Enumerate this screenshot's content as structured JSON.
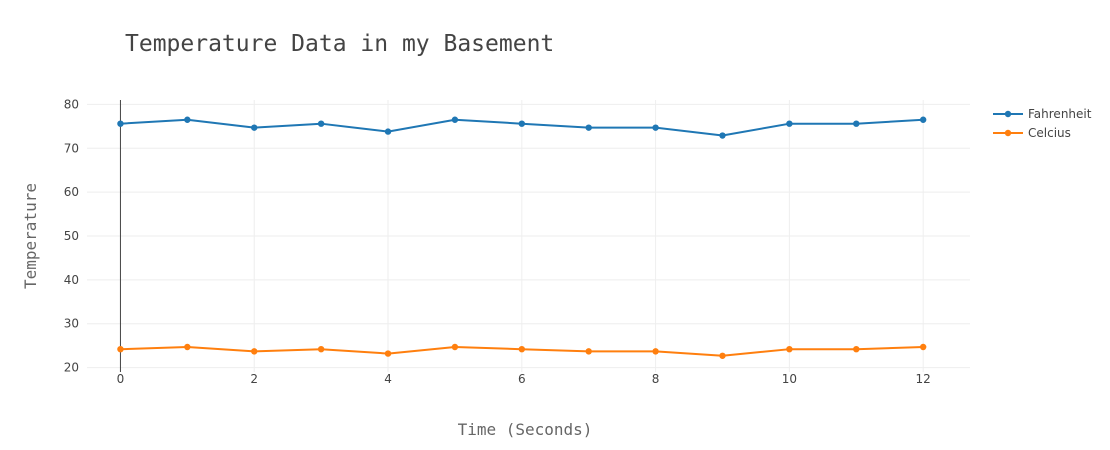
{
  "chart_data": {
    "type": "line",
    "title": "Temperature Data in my Basement",
    "xlabel": "Time (Seconds)",
    "ylabel": "Temperature",
    "xlim": [
      -0.5,
      12.7
    ],
    "ylim": [
      19,
      81
    ],
    "x_ticks": [
      0,
      2,
      4,
      6,
      8,
      10,
      12
    ],
    "y_ticks": [
      20,
      30,
      40,
      50,
      60,
      70,
      80
    ],
    "grid": true,
    "legend_position": "top-right",
    "x": [
      0,
      1,
      2,
      3,
      4,
      5,
      6,
      7,
      8,
      9,
      10,
      11,
      12
    ],
    "series": [
      {
        "name": "Fahrenheit",
        "color": "#1f77b4",
        "values": [
          75.6,
          76.5,
          74.7,
          75.6,
          73.8,
          76.5,
          75.6,
          74.7,
          74.7,
          72.9,
          75.6,
          75.6,
          76.5
        ]
      },
      {
        "name": "Celcius",
        "color": "#ff7f0e",
        "values": [
          24.2,
          24.7,
          23.7,
          24.2,
          23.2,
          24.7,
          24.2,
          23.7,
          23.7,
          22.7,
          24.2,
          24.2,
          24.7
        ]
      }
    ]
  }
}
